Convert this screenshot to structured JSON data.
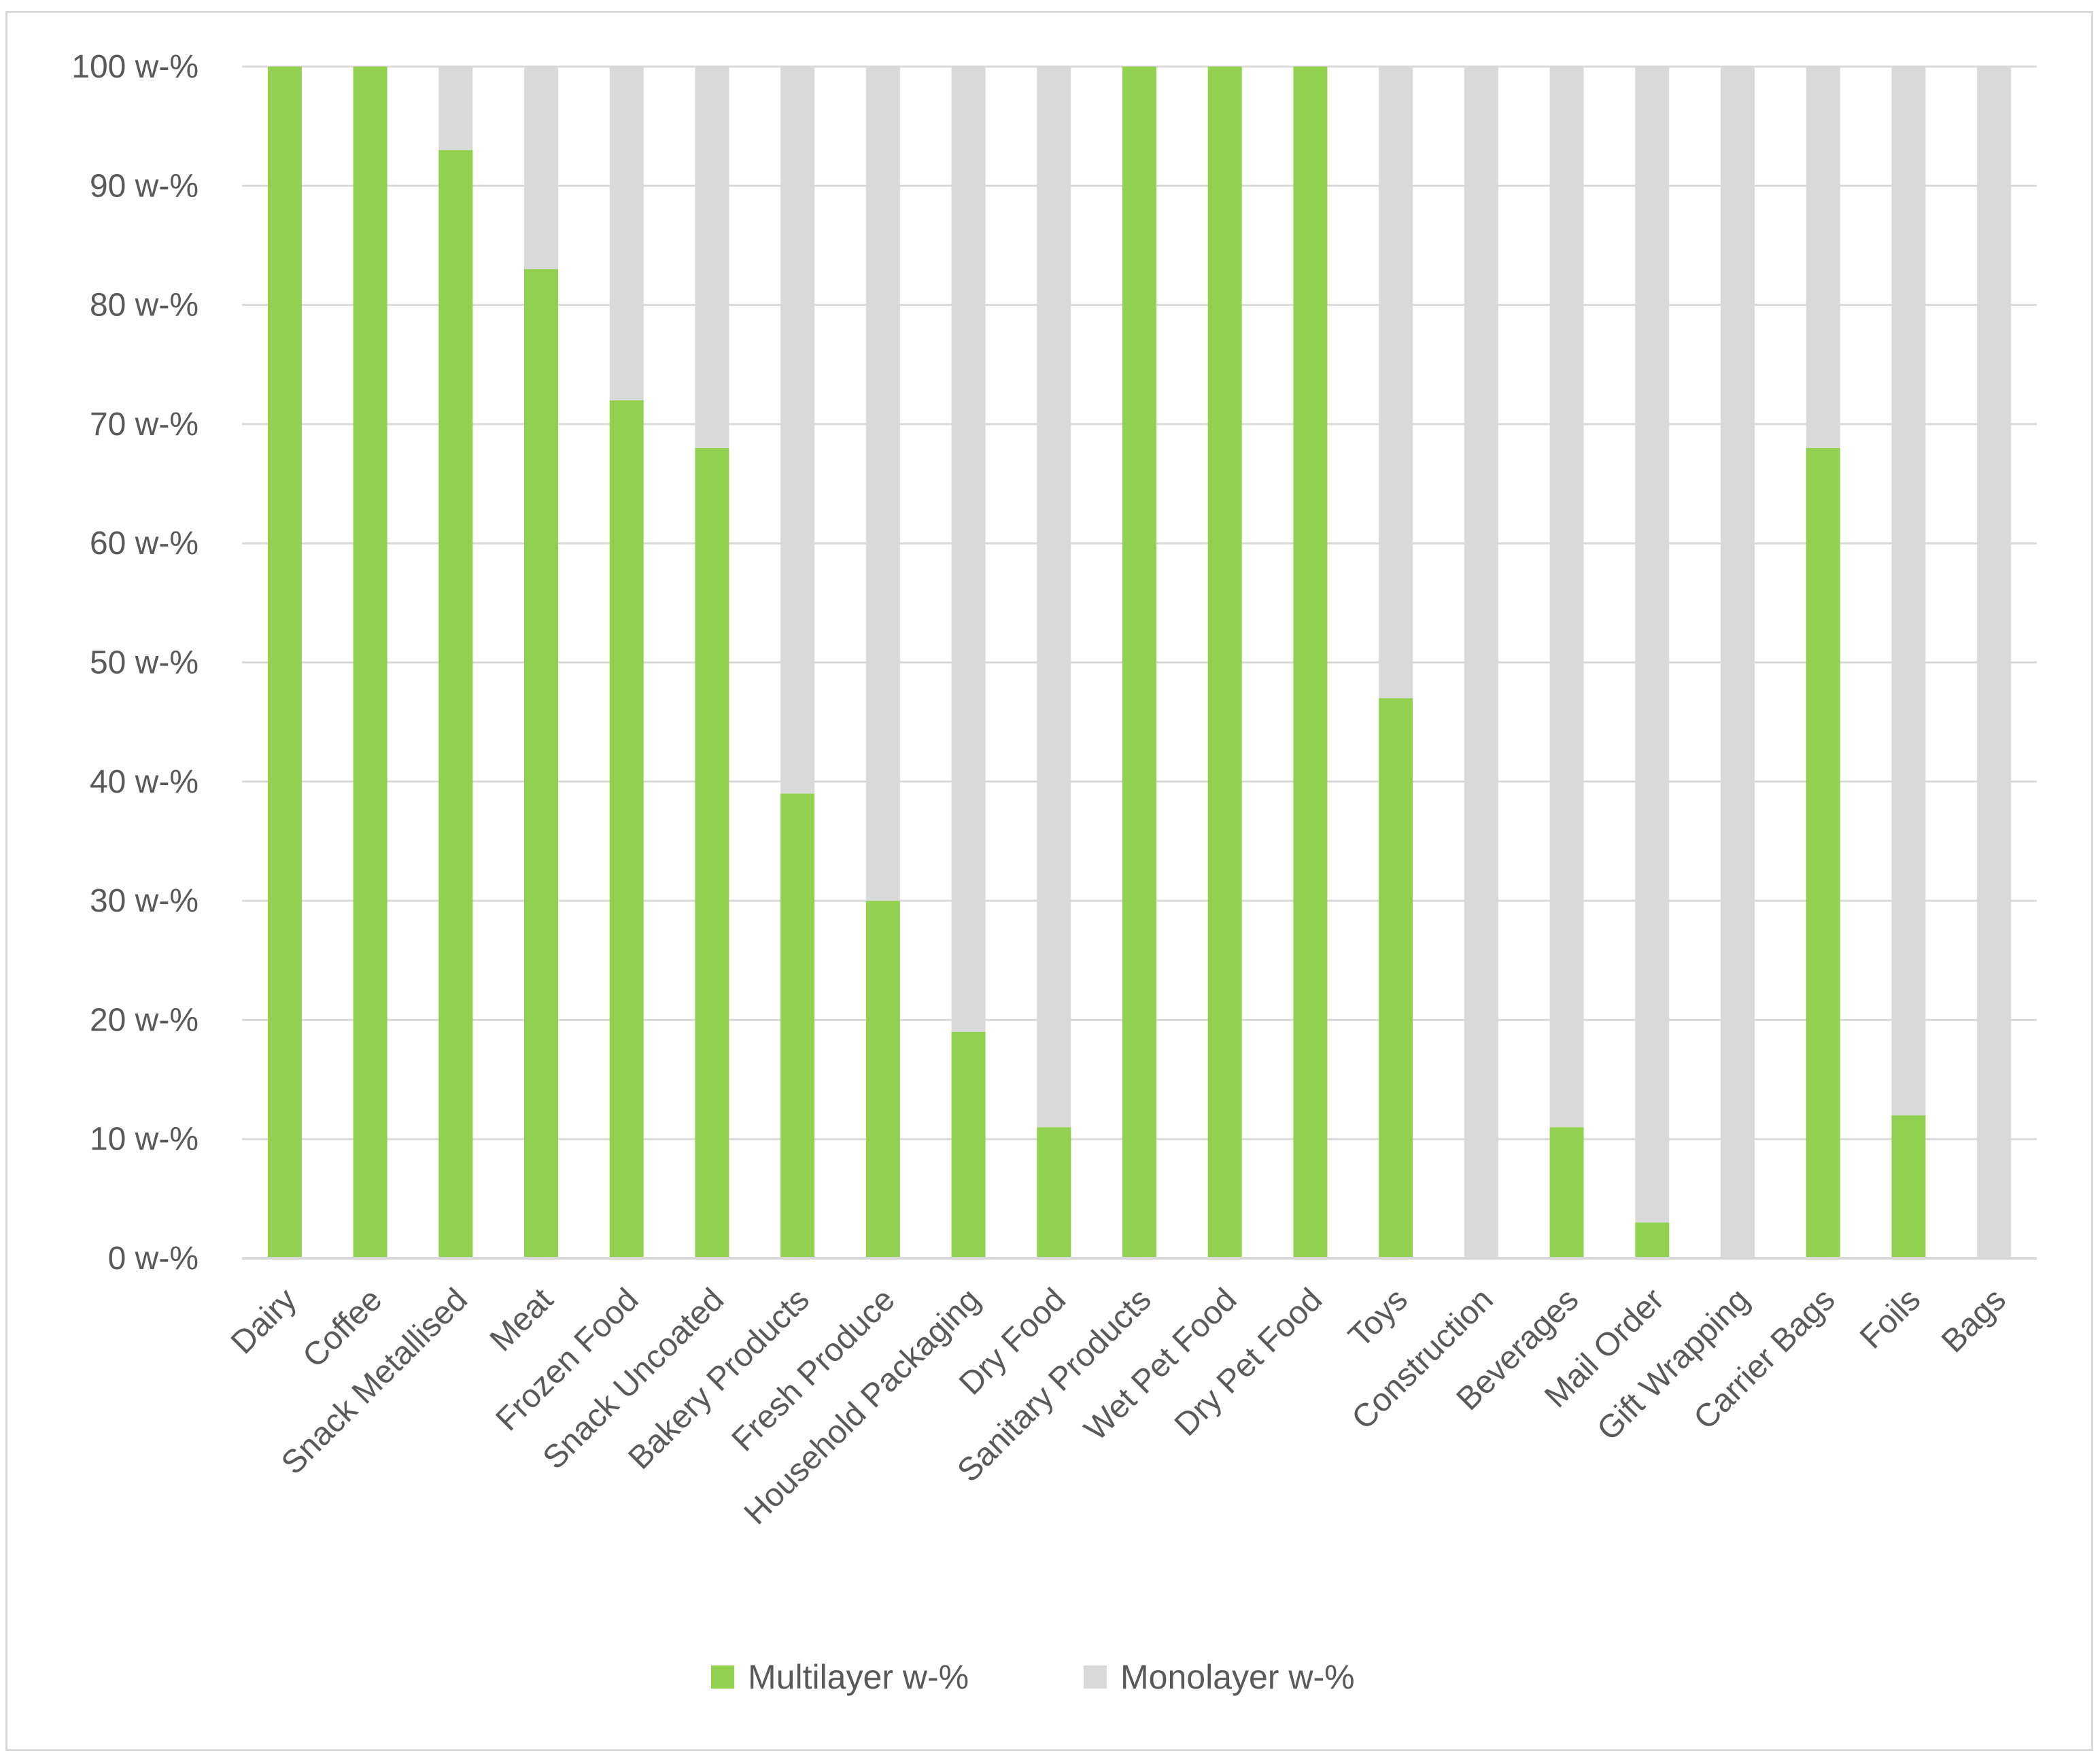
{
  "chart_data": {
    "type": "bar",
    "stacked": true,
    "title": "",
    "xlabel": "",
    "ylabel": "",
    "ylim": [
      0,
      100
    ],
    "yticks": [
      0,
      10,
      20,
      30,
      40,
      50,
      60,
      70,
      80,
      90,
      100
    ],
    "ytick_suffix": " w-%",
    "grid": true,
    "legend_position": "bottom",
    "categories": [
      "Dairy",
      "Coffee",
      "Snack Metallised",
      "Meat",
      "Frozen Food",
      "Snack Uncoated",
      "Bakery Products",
      "Fresh Produce",
      "Household Packaging",
      "Dry Food",
      "Sanitary Products",
      "Wet Pet Food",
      "Dry Pet Food",
      "Toys",
      "Construction",
      "Beverages",
      "Mail Order",
      "Gift Wrapping",
      "Carrier Bags",
      "Foils",
      "Bags"
    ],
    "series": [
      {
        "name": "Multilayer w-%",
        "color": "#92d050",
        "values": [
          100,
          100,
          93,
          83,
          72,
          68,
          39,
          30,
          19,
          11,
          100,
          100,
          100,
          47,
          0,
          11,
          3,
          0,
          68,
          12,
          0
        ]
      },
      {
        "name": "Monolayer w-%",
        "color": "#d9d9d9",
        "values": [
          0,
          0,
          7,
          17,
          28,
          32,
          61,
          70,
          81,
          89,
          0,
          0,
          0,
          53,
          100,
          89,
          97,
          100,
          32,
          88,
          100
        ]
      }
    ],
    "gridline_color": "#d9d9d9"
  }
}
